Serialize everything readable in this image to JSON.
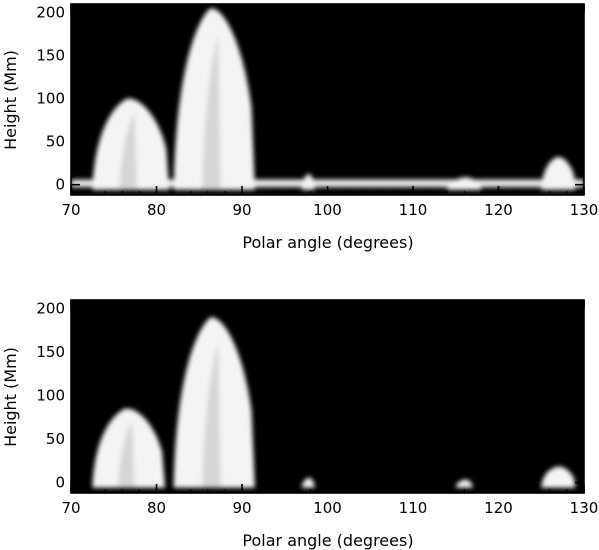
{
  "chart_data": [
    {
      "type": "heatmap",
      "panel": "top",
      "xlabel": "Polar angle (degrees)",
      "ylabel": "Height (Mm)",
      "xlim": [
        70,
        130
      ],
      "ylim": [
        -12,
        210
      ],
      "xticks": [
        70,
        80,
        90,
        100,
        110,
        120,
        130
      ],
      "yticks": [
        0,
        50,
        100,
        150,
        200
      ],
      "colormap": "grayscale",
      "background": "#000000",
      "features": [
        {
          "x_range": [
            72.5,
            81.5
          ],
          "peak_height": 100
        },
        {
          "x_range": [
            82.0,
            91.5
          ],
          "peak_height": 205
        },
        {
          "x_range": [
            97.0,
            98.5
          ],
          "peak_height": 12
        },
        {
          "x_range": [
            114.0,
            118.0
          ],
          "peak_height": 8
        },
        {
          "x_range": [
            125.0,
            129.0
          ],
          "peak_height": 32
        }
      ],
      "limb_band_height": 0
    },
    {
      "type": "heatmap",
      "panel": "bottom",
      "xlabel": "Polar angle (degrees)",
      "ylabel": "Height (Mm)",
      "xlim": [
        70,
        130
      ],
      "ylim": [
        -12,
        210
      ],
      "xticks": [
        70,
        80,
        90,
        100,
        110,
        120,
        130
      ],
      "yticks": [
        0,
        50,
        100,
        150,
        200
      ],
      "colormap": "grayscale",
      "background": "#000000",
      "features": [
        {
          "x_range": [
            72.5,
            81.0
          ],
          "peak_height": 85
        },
        {
          "x_range": [
            82.0,
            91.5
          ],
          "peak_height": 190
        },
        {
          "x_range": [
            97.0,
            98.5
          ],
          "peak_height": 5
        },
        {
          "x_range": [
            115.0,
            117.0
          ],
          "peak_height": 3
        },
        {
          "x_range": [
            125.0,
            129.0
          ],
          "peak_height": 18
        }
      ]
    }
  ]
}
